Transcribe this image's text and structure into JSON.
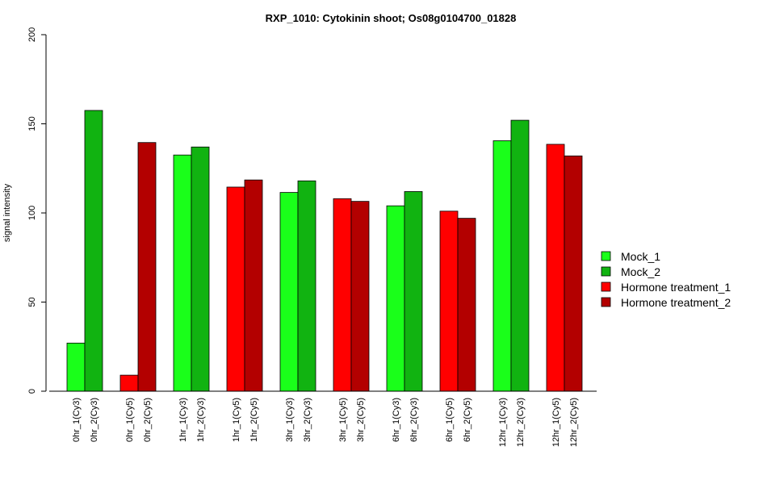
{
  "chart_data": {
    "type": "bar",
    "title": "RXP_1010: Cytokinin shoot; Os08g0104700_01828",
    "xlabel": "",
    "ylabel": "signal intensity",
    "ylim": [
      0,
      200
    ],
    "yticks": [
      0,
      50,
      100,
      150,
      200
    ],
    "grid": false,
    "legend_position": "right",
    "series": [
      {
        "name": "Mock_1",
        "color": "#1aff1a"
      },
      {
        "name": "Mock_2",
        "color": "#11b311"
      },
      {
        "name": "Hormone treatment_1",
        "color": "#ff0000"
      },
      {
        "name": "Hormone treatment_2",
        "color": "#b30000"
      }
    ],
    "bars": [
      {
        "label": "0hr_1(Cy3)",
        "value": 27,
        "series": 0
      },
      {
        "label": "0hr_2(Cy3)",
        "value": 157.5,
        "series": 1
      },
      {
        "label": "0hr_1(Cy5)",
        "value": 9,
        "series": 2
      },
      {
        "label": "0hr_2(Cy5)",
        "value": 139.5,
        "series": 3
      },
      {
        "label": "1hr_1(Cy3)",
        "value": 132.5,
        "series": 0
      },
      {
        "label": "1hr_2(Cy3)",
        "value": 137,
        "series": 1
      },
      {
        "label": "1hr_1(Cy5)",
        "value": 114.5,
        "series": 2
      },
      {
        "label": "1hr_2(Cy5)",
        "value": 118.5,
        "series": 3
      },
      {
        "label": "3hr_1(Cy3)",
        "value": 111.5,
        "series": 0
      },
      {
        "label": "3hr_2(Cy3)",
        "value": 118,
        "series": 1
      },
      {
        "label": "3hr_1(Cy5)",
        "value": 108,
        "series": 2
      },
      {
        "label": "3hr_2(Cy5)",
        "value": 106.5,
        "series": 3
      },
      {
        "label": "6hr_1(Cy3)",
        "value": 104,
        "series": 0
      },
      {
        "label": "6hr_2(Cy3)",
        "value": 112,
        "series": 1
      },
      {
        "label": "6hr_1(Cy5)",
        "value": 101,
        "series": 2
      },
      {
        "label": "6hr_2(Cy5)",
        "value": 97,
        "series": 3
      },
      {
        "label": "12hr_1(Cy3)",
        "value": 140.5,
        "series": 0
      },
      {
        "label": "12hr_2(Cy3)",
        "value": 152,
        "series": 1
      },
      {
        "label": "12hr_1(Cy5)",
        "value": 138.5,
        "series": 2
      },
      {
        "label": "12hr_2(Cy5)",
        "value": 132,
        "series": 3
      }
    ]
  }
}
